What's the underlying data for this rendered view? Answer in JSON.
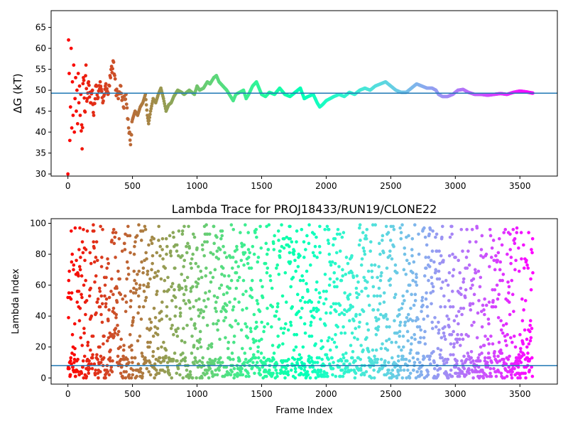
{
  "chart_data": [
    {
      "type": "scatter",
      "title": "",
      "xlabel": "",
      "ylabel": "ΔG (kT)",
      "xlim": [
        -130,
        3790
      ],
      "ylim": [
        29.5,
        69
      ],
      "xticks": [
        "0",
        "500",
        "1000",
        "1500",
        "2000",
        "2500",
        "3000",
        "3500"
      ],
      "yticks": [
        "30",
        "35",
        "40",
        "45",
        "50",
        "55",
        "60",
        "65"
      ],
      "hline": 49.3,
      "colormap": "rainbow",
      "x_range": [
        0,
        3600
      ],
      "grid": false,
      "series_trace": [
        [
          0,
          30.0
        ],
        [
          5,
          62.0
        ],
        [
          10,
          54.0
        ],
        [
          15,
          38.0
        ],
        [
          20,
          46.0
        ],
        [
          25,
          60.0
        ],
        [
          30,
          41.0
        ],
        [
          35,
          52.0
        ],
        [
          40,
          44.0
        ],
        [
          45,
          56.0
        ],
        [
          50,
          40.0
        ],
        [
          55,
          48.0
        ],
        [
          60,
          53.0
        ],
        [
          65,
          45.0
        ],
        [
          70,
          50.0
        ],
        [
          75,
          42.0
        ],
        [
          80,
          54.0
        ],
        [
          85,
          47.0
        ],
        [
          90,
          51.0
        ],
        [
          95,
          44.0
        ],
        [
          100,
          49.0
        ],
        [
          110,
          36.0
        ],
        [
          120,
          53.0
        ],
        [
          130,
          45.0
        ],
        [
          140,
          56.0
        ],
        [
          150,
          48.0
        ],
        [
          160,
          52.0
        ],
        [
          175,
          47.0
        ],
        [
          190,
          50.0
        ],
        [
          200,
          44.0
        ],
        [
          215,
          51.0
        ],
        [
          230,
          48.0
        ],
        [
          250,
          52.0
        ],
        [
          270,
          47.0
        ],
        [
          290,
          51.0
        ],
        [
          310,
          49.0
        ],
        [
          330,
          53.0
        ],
        [
          350,
          57.0
        ],
        [
          370,
          50.0
        ],
        [
          390,
          48.0
        ],
        [
          410,
          51.0
        ],
        [
          430,
          46.0
        ],
        [
          450,
          49.0
        ],
        [
          470,
          41.0
        ],
        [
          485,
          37.0
        ],
        [
          500,
          43.0
        ],
        [
          520,
          45.0
        ],
        [
          540,
          44.0
        ],
        [
          560,
          46.0
        ],
        [
          580,
          47.0
        ],
        [
          600,
          49.0
        ],
        [
          615,
          44.0
        ],
        [
          625,
          42.0
        ],
        [
          640,
          45.0
        ],
        [
          660,
          48.0
        ],
        [
          680,
          47.0
        ],
        [
          700,
          49.0
        ],
        [
          720,
          50.5
        ],
        [
          740,
          48.0
        ],
        [
          760,
          45.0
        ],
        [
          780,
          46.5
        ],
        [
          800,
          47.0
        ],
        [
          820,
          48.5
        ],
        [
          850,
          50.0
        ],
        [
          880,
          49.5
        ],
        [
          900,
          49.0
        ],
        [
          940,
          50.0
        ],
        [
          980,
          49.0
        ],
        [
          1000,
          51.0
        ],
        [
          1020,
          50.0
        ],
        [
          1050,
          50.5
        ],
        [
          1080,
          52.0
        ],
        [
          1100,
          51.5
        ],
        [
          1130,
          53.0
        ],
        [
          1150,
          53.5
        ],
        [
          1170,
          52.0
        ],
        [
          1200,
          51.0
        ],
        [
          1230,
          50.0
        ],
        [
          1260,
          48.5
        ],
        [
          1280,
          47.5
        ],
        [
          1300,
          49.0
        ],
        [
          1330,
          49.5
        ],
        [
          1360,
          50.0
        ],
        [
          1380,
          48.0
        ],
        [
          1400,
          49.0
        ],
        [
          1430,
          51.0
        ],
        [
          1460,
          52.0
        ],
        [
          1480,
          50.5
        ],
        [
          1500,
          49.0
        ],
        [
          1530,
          48.5
        ],
        [
          1560,
          49.5
        ],
        [
          1600,
          49.0
        ],
        [
          1640,
          50.5
        ],
        [
          1680,
          49.0
        ],
        [
          1720,
          48.5
        ],
        [
          1760,
          49.5
        ],
        [
          1800,
          50.5
        ],
        [
          1830,
          48.0
        ],
        [
          1860,
          48.5
        ],
        [
          1900,
          49.0
        ],
        [
          1930,
          47.0
        ],
        [
          1950,
          46.0
        ],
        [
          1970,
          46.5
        ],
        [
          2000,
          47.5
        ],
        [
          2030,
          48.0
        ],
        [
          2060,
          48.5
        ],
        [
          2100,
          49.0
        ],
        [
          2140,
          48.5
        ],
        [
          2180,
          49.5
        ],
        [
          2220,
          49.0
        ],
        [
          2260,
          50.0
        ],
        [
          2300,
          50.5
        ],
        [
          2340,
          50.0
        ],
        [
          2380,
          51.0
        ],
        [
          2420,
          51.5
        ],
        [
          2460,
          52.0
        ],
        [
          2500,
          51.0
        ],
        [
          2540,
          50.0
        ],
        [
          2580,
          49.5
        ],
        [
          2620,
          49.5
        ],
        [
          2660,
          50.5
        ],
        [
          2700,
          51.5
        ],
        [
          2740,
          51.0
        ],
        [
          2780,
          50.5
        ],
        [
          2820,
          50.5
        ],
        [
          2850,
          50.0
        ],
        [
          2870,
          49.0
        ],
        [
          2900,
          48.5
        ],
        [
          2940,
          48.5
        ],
        [
          2980,
          49.0
        ],
        [
          3020,
          50.0
        ],
        [
          3060,
          50.2
        ],
        [
          3100,
          49.5
        ],
        [
          3150,
          49.0
        ],
        [
          3200,
          49.0
        ],
        [
          3250,
          48.8
        ],
        [
          3300,
          49.0
        ],
        [
          3350,
          49.2
        ],
        [
          3400,
          49.0
        ],
        [
          3450,
          49.5
        ],
        [
          3500,
          49.8
        ],
        [
          3550,
          49.6
        ],
        [
          3600,
          49.3
        ]
      ]
    },
    {
      "type": "scatter",
      "title": "Lambda Trace for PROJ18433/RUN19/CLONE22",
      "xlabel": "Frame Index",
      "ylabel": "Lambda Index",
      "xlim": [
        -130,
        3790
      ],
      "ylim": [
        -4,
        103
      ],
      "xticks": [
        "0",
        "500",
        "1000",
        "1500",
        "2000",
        "2500",
        "3000",
        "3500"
      ],
      "yticks": [
        "0",
        "20",
        "40",
        "60",
        "80",
        "100"
      ],
      "hline": 8,
      "colormap": "rainbow",
      "x_range": [
        0,
        3600
      ],
      "value_range": [
        0,
        99
      ],
      "grid": false
    }
  ]
}
